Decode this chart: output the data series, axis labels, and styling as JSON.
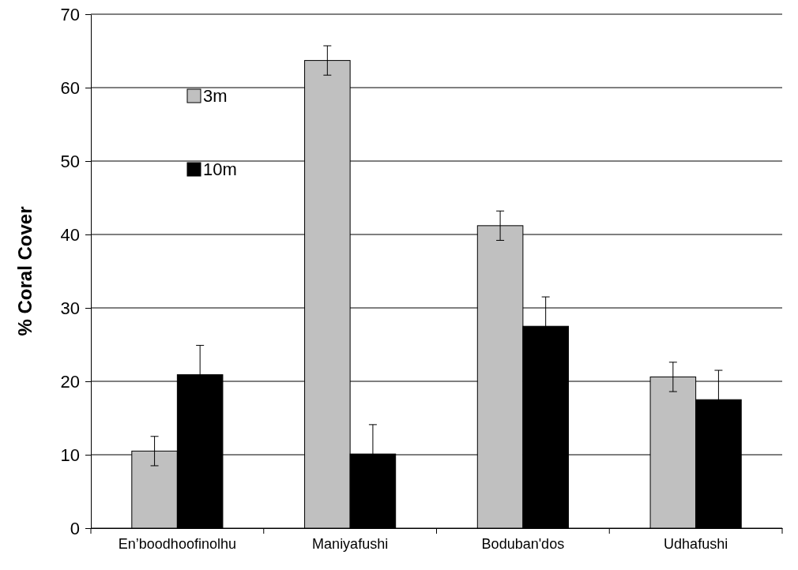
{
  "chart_data": {
    "type": "bar",
    "ylabel": "% Coral Cover",
    "categories": [
      "En’boodhoofinolhu",
      "Maniyafushi",
      "Boduban'dos",
      "Udhafushi"
    ],
    "series": [
      {
        "name": "3m",
        "color": "#c0c0c0",
        "values": [
          10.5,
          63.7,
          41.2,
          20.6
        ],
        "errors": [
          2,
          2,
          2,
          2
        ]
      },
      {
        "name": "10m",
        "color": "#000000",
        "values": [
          20.9,
          10.1,
          27.5,
          17.5
        ],
        "errors": [
          4,
          4,
          4,
          4
        ]
      }
    ],
    "ylim": [
      0,
      70
    ],
    "yticks": [
      0,
      10,
      20,
      30,
      40,
      50,
      60,
      70
    ],
    "grid": "y",
    "legend": "top left"
  }
}
